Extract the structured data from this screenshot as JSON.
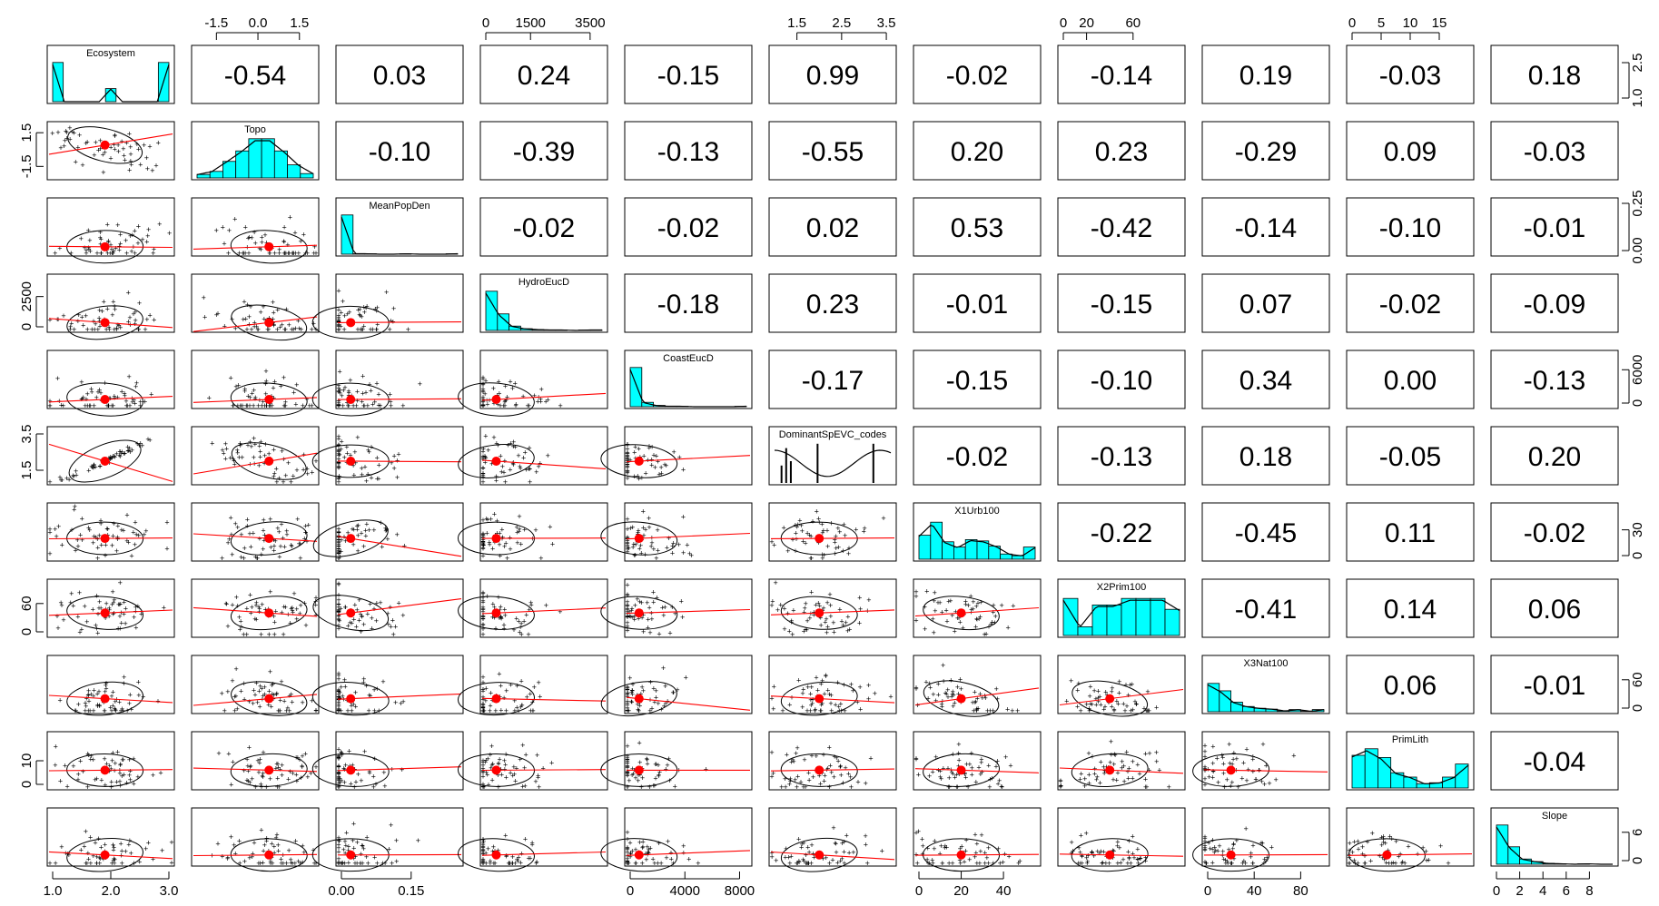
{
  "chart_data": {
    "type": "scatter",
    "variables": [
      "Ecosystem",
      "Topo",
      "MeanPopDen",
      "HydroEucD",
      "CoastEucD",
      "DominantSpEVC_codes",
      "X1Urb100",
      "X2Prim100",
      "X3Nat100",
      "PrimLith",
      "Slope"
    ],
    "correlations": [
      [
        null,
        -0.54,
        0.03,
        0.24,
        -0.15,
        0.99,
        -0.02,
        -0.14,
        0.19,
        -0.03,
        0.18
      ],
      [
        -0.54,
        null,
        -0.1,
        -0.39,
        -0.13,
        -0.55,
        0.2,
        0.23,
        -0.29,
        0.09,
        -0.03
      ],
      [
        0.03,
        -0.1,
        null,
        -0.02,
        -0.02,
        0.02,
        0.53,
        -0.42,
        -0.14,
        -0.1,
        -0.01
      ],
      [
        0.24,
        -0.39,
        -0.02,
        null,
        -0.18,
        0.23,
        -0.01,
        -0.15,
        0.07,
        -0.02,
        -0.09
      ],
      [
        -0.15,
        -0.13,
        -0.02,
        -0.18,
        null,
        -0.17,
        -0.15,
        -0.1,
        0.34,
        0.0,
        -0.13
      ],
      [
        0.99,
        -0.55,
        0.02,
        0.23,
        -0.17,
        null,
        -0.02,
        -0.13,
        0.18,
        -0.05,
        0.2
      ],
      [
        -0.02,
        0.2,
        0.53,
        -0.01,
        -0.15,
        -0.02,
        null,
        -0.22,
        -0.45,
        0.11,
        -0.02
      ],
      [
        -0.14,
        0.23,
        -0.42,
        -0.15,
        -0.1,
        -0.13,
        -0.22,
        null,
        -0.41,
        0.14,
        0.06
      ],
      [
        0.19,
        -0.29,
        -0.14,
        0.07,
        0.34,
        0.18,
        -0.45,
        -0.41,
        null,
        0.06,
        -0.01
      ],
      [
        -0.03,
        0.09,
        -0.1,
        -0.02,
        0.0,
        -0.05,
        0.11,
        0.14,
        0.06,
        null,
        -0.04
      ],
      [
        0.18,
        -0.03,
        -0.01,
        -0.09,
        -0.13,
        0.2,
        -0.02,
        0.06,
        -0.01,
        -0.04,
        null
      ]
    ],
    "correlation_labels": [
      "-0.54",
      "0.03",
      "0.24",
      "-0.15",
      "0.99",
      "-0.02",
      "-0.14",
      "0.19",
      "-0.03",
      "0.18",
      "-0.10",
      "-0.39",
      "-0.13",
      "-0.55",
      "0.20",
      "0.23",
      "-0.29",
      "0.09",
      "-0.03",
      "-0.02",
      "-0.02",
      "0.02",
      "0.53",
      "-0.42",
      "-0.14",
      "-0.10",
      "-0.01",
      "-0.18",
      "0.23",
      "-0.01",
      "-0.15",
      "0.07",
      "-0.02",
      "-0.09",
      "-0.17",
      "-0.15",
      "-0.10",
      "0.34",
      "0.00",
      "-0.13",
      "-0.02",
      "-0.13",
      "0.18",
      "-0.05",
      "0.20",
      "-0.22",
      "-0.45",
      "0.11",
      "-0.02",
      "-0.41",
      "0.14",
      "0.06",
      "0.06",
      "-0.01",
      "-0.04"
    ],
    "ranges": [
      [
        1,
        3
      ],
      [
        -2.2,
        2.0
      ],
      [
        0,
        0.25
      ],
      [
        0,
        3900
      ],
      [
        0,
        8500
      ],
      [
        1,
        3.6
      ],
      [
        0,
        55
      ],
      [
        0,
        100
      ],
      [
        0,
        100
      ],
      [
        0,
        20
      ],
      [
        0,
        10
      ]
    ],
    "means": [
      1.9,
      0.4,
      0.02,
      350,
      650,
      2.0,
      20,
      40,
      20,
      6,
      1.2
    ],
    "hist": [
      [
        0.9,
        0,
        0,
        0,
        0,
        0.3,
        0,
        0,
        0,
        0,
        0.9
      ],
      [
        0.08,
        0.15,
        0.38,
        0.62,
        0.9,
        0.9,
        0.62,
        0.3,
        0.1
      ],
      [
        0.9,
        0.01,
        0.01,
        0,
        0,
        0.01,
        0,
        0,
        0,
        0.01
      ],
      [
        0.9,
        0.38,
        0.1,
        0.04,
        0.02,
        0.01,
        0.01,
        0,
        0.01,
        0.01
      ],
      [
        0.9,
        0.1,
        0.03,
        0.01,
        0.01,
        0,
        0,
        0,
        0,
        0.01
      ],
      [],
      [
        0.55,
        0.85,
        0.4,
        0.28,
        0.45,
        0.42,
        0.3,
        0.12,
        0.08,
        0.28
      ],
      [
        0.85,
        0.2,
        0.7,
        0.7,
        0.85,
        0.85,
        0.85,
        0.6
      ],
      [
        0.65,
        0.48,
        0.22,
        0.12,
        0.08,
        0.06,
        0.02,
        0.05,
        0.01,
        0.05
      ],
      [
        0.75,
        0.9,
        0.7,
        0.35,
        0.25,
        0.1,
        0.12,
        0.25,
        0.55
      ],
      [
        0.9,
        0.4,
        0.12,
        0.06,
        0.02,
        0.01,
        0,
        0.01,
        0,
        0
      ]
    ],
    "top_axes": [
      {
        "col": 1,
        "ticks": [
          -1.5,
          0.0,
          1.5
        ],
        "labels": [
          "-1.5",
          "0.0",
          "1.5"
        ]
      },
      {
        "col": 3,
        "ticks": [
          0,
          1500,
          3500
        ],
        "labels": [
          "0",
          "1500",
          "3500"
        ]
      },
      {
        "col": 5,
        "ticks": [
          1.5,
          2.5,
          3.5
        ],
        "labels": [
          "1.5",
          "2.5",
          "3.5"
        ]
      },
      {
        "col": 7,
        "ticks": [
          0,
          20,
          60
        ],
        "labels": [
          "0",
          "20",
          "60"
        ]
      },
      {
        "col": 9,
        "ticks": [
          0,
          5,
          10,
          15
        ],
        "labels": [
          "0",
          "5",
          "10",
          "15"
        ]
      }
    ],
    "bottom_axes": [
      {
        "col": 0,
        "ticks": [
          1.0,
          2.0,
          3.0
        ],
        "labels": [
          "1.0",
          "2.0",
          "3.0"
        ]
      },
      {
        "col": 2,
        "ticks": [
          0.0,
          0.15
        ],
        "labels": [
          "0.00",
          "0.15"
        ]
      },
      {
        "col": 4,
        "ticks": [
          0,
          4000,
          8000
        ],
        "labels": [
          "0",
          "4000",
          "8000"
        ]
      },
      {
        "col": 6,
        "ticks": [
          0,
          20,
          40
        ],
        "labels": [
          "0",
          "20",
          "40"
        ]
      },
      {
        "col": 8,
        "ticks": [
          0,
          40,
          80
        ],
        "labels": [
          "0",
          "40",
          "80"
        ]
      },
      {
        "col": 10,
        "ticks": [
          0,
          2,
          4,
          6,
          8
        ],
        "labels": [
          "0",
          "2",
          "4",
          "6",
          "8"
        ]
      }
    ],
    "left_axes": [
      {
        "row": 1,
        "ticks": [
          1.5,
          -1.5
        ],
        "labels": [
          "1.5",
          "-1.5"
        ]
      },
      {
        "row": 3,
        "ticks": [
          2500,
          0
        ],
        "labels": [
          "2500",
          "0"
        ]
      },
      {
        "row": 5,
        "ticks": [
          3.5,
          1.5
        ],
        "labels": [
          "3.5",
          "1.5"
        ]
      },
      {
        "row": 7,
        "ticks": [
          60,
          0
        ],
        "labels": [
          "60",
          "0"
        ]
      },
      {
        "row": 9,
        "ticks": [
          10,
          0
        ],
        "labels": [
          "10",
          "0"
        ]
      }
    ],
    "right_axes": [
      {
        "row": 0,
        "ticks": [
          2.5,
          1.0
        ],
        "labels": [
          "2.5",
          "1.0"
        ]
      },
      {
        "row": 2,
        "ticks": [
          0.25,
          0.0
        ],
        "labels": [
          "0.25",
          "0.00"
        ]
      },
      {
        "row": 4,
        "ticks": [
          6000,
          0
        ],
        "labels": [
          "6000",
          "0"
        ]
      },
      {
        "row": 6,
        "ticks": [
          30,
          0
        ],
        "labels": [
          "30",
          "0"
        ]
      },
      {
        "row": 8,
        "ticks": [
          60,
          0
        ],
        "labels": [
          "60",
          "0"
        ]
      },
      {
        "row": 10,
        "ticks": [
          6,
          0
        ],
        "labels": [
          "6",
          "0"
        ]
      }
    ]
  },
  "colors": {
    "hist_fill": "#00ffff",
    "mean_point": "#ff0000",
    "smooth_line": "#ff0000",
    "points": "#000000",
    "density_line": "#000000"
  }
}
